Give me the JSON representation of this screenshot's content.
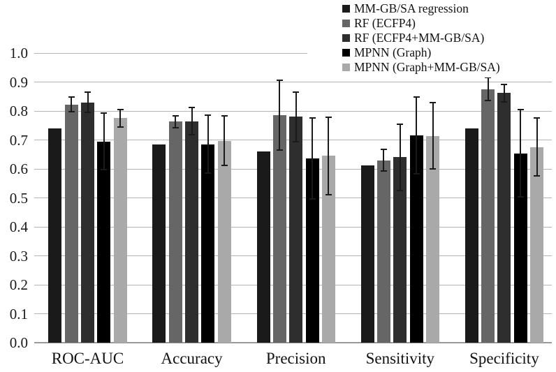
{
  "chart_data": {
    "type": "bar",
    "title": "",
    "xlabel": "",
    "ylabel": "",
    "categories": [
      "ROC-AUC",
      "Accuracy",
      "Precision",
      "Sensitivity",
      "Specificity"
    ],
    "series": [
      {
        "name": "MM-GB/SA regression",
        "color": "#1a1a1a",
        "values": [
          0.74,
          0.685,
          0.66,
          0.613,
          0.74
        ],
        "errors": [
          null,
          null,
          null,
          null,
          null
        ]
      },
      {
        "name": "RF (ECFP4)",
        "color": "#666666",
        "values": [
          0.822,
          0.763,
          0.785,
          0.63,
          0.875
        ],
        "errors": [
          0.025,
          0.02,
          0.12,
          0.038,
          0.04
        ]
      },
      {
        "name": "RF (ECFP4+MM-GB/SA)",
        "color": "#2e2e2e",
        "values": [
          0.83,
          0.765,
          0.78,
          0.64,
          0.862
        ],
        "errors": [
          0.035,
          0.047,
          0.085,
          0.115,
          0.03
        ]
      },
      {
        "name": "MPNN (Graph)",
        "color": "#000000",
        "values": [
          0.695,
          0.685,
          0.637,
          0.716,
          0.654
        ],
        "errors": [
          0.097,
          0.1,
          0.14,
          0.132,
          0.15
        ]
      },
      {
        "name": "MPNN (Graph+MM-GB/SA)",
        "color": "#a9a9a9",
        "values": [
          0.775,
          0.697,
          0.645,
          0.714,
          0.675
        ],
        "errors": [
          0.03,
          0.086,
          0.133,
          0.115,
          0.1
        ]
      }
    ],
    "ylim": [
      0.0,
      1.0
    ],
    "ytick_labels": [
      "1.0",
      "0.9",
      "0.8",
      "0.7",
      "0.6",
      "0.5",
      "0.4",
      "0.3",
      "0.2",
      "0.1",
      "0.0"
    ],
    "grid": true,
    "gridline_color": "#b4b4b4",
    "baseline_color": "#9a9a9a",
    "errorbar_color": "#1a1a1a",
    "legend_position": "top-right",
    "has_error_bars": true
  }
}
